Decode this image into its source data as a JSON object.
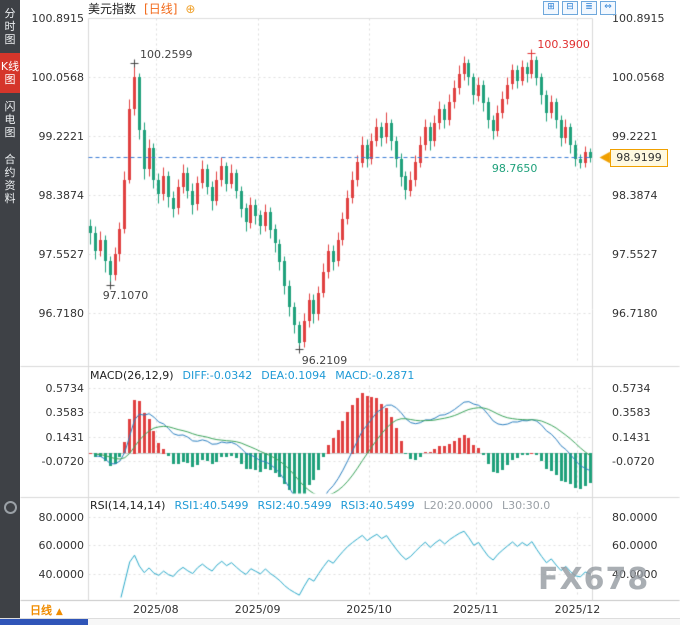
{
  "sidebar": {
    "items": [
      {
        "label": "分时图",
        "active": false
      },
      {
        "label": "K线图",
        "active": true
      },
      {
        "label": "闪电图",
        "active": false
      },
      {
        "label": "合约资料",
        "active": false
      }
    ]
  },
  "header": {
    "symbol": "美元指数",
    "period_tag": "[日线]",
    "add_icon_glyph": "⊕",
    "toolbar_icons": [
      {
        "name": "layout-quad-icon",
        "glyph": "⊞"
      },
      {
        "name": "layout-dual-icon",
        "glyph": "⊟"
      },
      {
        "name": "layout-rows-icon",
        "glyph": "≣"
      },
      {
        "name": "expand-icon",
        "glyph": "⇔"
      }
    ]
  },
  "main_chart": {
    "y_ticks": [
      "100.8915",
      "100.0568",
      "99.2221",
      "98.3874",
      "97.5527",
      "96.7180"
    ],
    "current_price_label": "98.9199"
  },
  "macd_panel": {
    "title": "MACD(26,12,9)",
    "diff": "DIFF:-0.0342",
    "dea": "DEA:0.1094",
    "macd": "MACD:-0.2871",
    "y_ticks": [
      "0.5734",
      "0.3583",
      "0.1431",
      "-0.0720"
    ]
  },
  "rsi_panel": {
    "title": "RSI(14,14,14)",
    "rsi1": "RSI1:40.5499",
    "rsi2": "RSI2:40.5499",
    "rsi3": "RSI3:40.5499",
    "l20": "L20:20.0000",
    "l30": "L30:30.0",
    "y_ticks": [
      "80.0000",
      "60.0000",
      "40.0000"
    ]
  },
  "bottom": {
    "period_label": "日线",
    "period_arrow": "▲",
    "x_labels": [
      "2025/08",
      "2025/09",
      "2025/10",
      "2025/11",
      "2025/12"
    ]
  },
  "watermark": "FX678",
  "colors": {
    "up": "#e04040",
    "down": "#1fa17b",
    "accent": "#f0a000",
    "dashed_line": "#3a7bd5",
    "diff_line": "#2b7fbf",
    "dea_line": "#3aa35a",
    "rsi_line": "#2aa9c9"
  },
  "chart_data": {
    "type": "candlestick",
    "title": "美元指数 日线",
    "y_ticks": [
      100.8915,
      100.0568,
      99.2221,
      98.3874,
      97.5527,
      96.718
    ],
    "x_labels": [
      "2025/08",
      "2025/09",
      "2025/10",
      "2025/11",
      "2025/12"
    ],
    "month_start_indices": [
      14,
      35,
      58,
      80,
      101
    ],
    "current_price": 98.9199,
    "marked_points": [
      {
        "text": "100.2599",
        "value": 100.2599,
        "index": 9,
        "color": "#444444",
        "placement": "high"
      },
      {
        "text": "100.3900",
        "value": 100.39,
        "index": 91,
        "color": "#e03030",
        "placement": "high"
      },
      {
        "text": "97.1070",
        "value": 97.107,
        "index": 4,
        "color": "#444444",
        "placement": "low-left"
      },
      {
        "text": "96.2109",
        "value": 96.2109,
        "index": 43,
        "color": "#444444",
        "placement": "low-right"
      },
      {
        "text": "98.7650",
        "value": 98.765,
        "index": 101,
        "color": "#1fa17b",
        "placement": "left"
      }
    ],
    "candles": [
      [
        97.95,
        98.05,
        97.7,
        97.85
      ],
      [
        97.85,
        97.95,
        97.48,
        97.6
      ],
      [
        97.6,
        97.88,
        97.52,
        97.75
      ],
      [
        97.75,
        97.82,
        97.3,
        97.45
      ],
      [
        97.45,
        97.52,
        97.107,
        97.25
      ],
      [
        97.25,
        97.65,
        97.18,
        97.55
      ],
      [
        97.55,
        98.0,
        97.45,
        97.9
      ],
      [
        97.9,
        98.72,
        97.85,
        98.6
      ],
      [
        98.6,
        99.75,
        98.55,
        99.6
      ],
      [
        99.6,
        100.2599,
        99.52,
        100.05
      ],
      [
        100.05,
        100.12,
        99.18,
        99.3
      ],
      [
        99.3,
        99.42,
        98.62,
        98.75
      ],
      [
        98.75,
        99.18,
        98.65,
        99.05
      ],
      [
        99.05,
        99.12,
        98.48,
        98.6
      ],
      [
        98.6,
        98.7,
        98.28,
        98.4
      ],
      [
        98.4,
        98.78,
        98.32,
        98.65
      ],
      [
        98.65,
        98.72,
        98.22,
        98.35
      ],
      [
        98.35,
        98.45,
        98.08,
        98.2
      ],
      [
        98.2,
        98.62,
        98.12,
        98.5
      ],
      [
        98.5,
        98.82,
        98.42,
        98.7
      ],
      [
        98.7,
        98.78,
        98.35,
        98.45
      ],
      [
        98.45,
        98.55,
        98.12,
        98.25
      ],
      [
        98.25,
        98.66,
        98.18,
        98.55
      ],
      [
        98.55,
        98.88,
        98.48,
        98.75
      ],
      [
        98.75,
        98.82,
        98.4,
        98.5
      ],
      [
        98.5,
        98.58,
        98.18,
        98.3
      ],
      [
        98.3,
        98.72,
        98.24,
        98.6
      ],
      [
        98.6,
        98.92,
        98.52,
        98.8
      ],
      [
        98.8,
        98.86,
        98.44,
        98.55
      ],
      [
        98.55,
        98.82,
        98.48,
        98.7
      ],
      [
        98.7,
        98.76,
        98.34,
        98.45
      ],
      [
        98.45,
        98.52,
        98.08,
        98.2
      ],
      [
        98.2,
        98.28,
        97.88,
        98.0
      ],
      [
        98.0,
        98.36,
        97.92,
        98.25
      ],
      [
        98.25,
        98.33,
        97.98,
        98.1
      ],
      [
        98.1,
        98.18,
        97.84,
        97.95
      ],
      [
        97.95,
        98.26,
        97.88,
        98.15
      ],
      [
        98.15,
        98.22,
        97.78,
        97.9
      ],
      [
        97.9,
        97.98,
        97.58,
        97.7
      ],
      [
        97.7,
        97.77,
        97.33,
        97.45
      ],
      [
        97.45,
        97.52,
        96.98,
        97.1
      ],
      [
        97.1,
        97.18,
        96.68,
        96.8
      ],
      [
        96.8,
        96.88,
        96.43,
        96.55
      ],
      [
        96.55,
        96.6,
        96.2109,
        96.3
      ],
      [
        96.3,
        96.72,
        96.24,
        96.6
      ],
      [
        96.6,
        97.0,
        96.52,
        96.9
      ],
      [
        96.9,
        96.98,
        96.58,
        96.7
      ],
      [
        96.7,
        97.1,
        96.62,
        97.0
      ],
      [
        97.0,
        97.42,
        96.94,
        97.3
      ],
      [
        97.3,
        97.7,
        97.22,
        97.6
      ],
      [
        97.6,
        97.68,
        97.33,
        97.45
      ],
      [
        97.45,
        97.86,
        97.38,
        97.75
      ],
      [
        97.75,
        98.15,
        97.68,
        98.05
      ],
      [
        98.05,
        98.46,
        97.98,
        98.35
      ],
      [
        98.35,
        98.72,
        98.28,
        98.6
      ],
      [
        98.6,
        98.96,
        98.52,
        98.85
      ],
      [
        98.85,
        99.22,
        98.78,
        99.1
      ],
      [
        99.1,
        99.18,
        98.78,
        98.9
      ],
      [
        98.9,
        99.26,
        98.82,
        99.15
      ],
      [
        99.15,
        99.48,
        99.08,
        99.35
      ],
      [
        99.35,
        99.42,
        99.08,
        99.2
      ],
      [
        99.2,
        99.56,
        99.12,
        99.4
      ],
      [
        99.4,
        99.46,
        99.02,
        99.15
      ],
      [
        99.15,
        99.22,
        98.78,
        98.9
      ],
      [
        98.9,
        98.98,
        98.52,
        98.65
      ],
      [
        98.65,
        98.72,
        98.33,
        98.45
      ],
      [
        98.45,
        98.72,
        98.38,
        98.6
      ],
      [
        98.6,
        98.96,
        98.52,
        98.85
      ],
      [
        98.85,
        99.22,
        98.78,
        99.1
      ],
      [
        99.1,
        99.46,
        99.02,
        99.35
      ],
      [
        99.35,
        99.42,
        99.03,
        99.15
      ],
      [
        99.15,
        99.52,
        99.08,
        99.4
      ],
      [
        99.4,
        99.72,
        99.32,
        99.6
      ],
      [
        99.6,
        99.67,
        99.33,
        99.45
      ],
      [
        99.45,
        99.82,
        99.38,
        99.7
      ],
      [
        99.7,
        100.02,
        99.62,
        99.9
      ],
      [
        99.9,
        100.22,
        99.82,
        100.1
      ],
      [
        100.1,
        100.36,
        100.02,
        100.25
      ],
      [
        100.25,
        100.31,
        99.94,
        100.05
      ],
      [
        100.05,
        100.12,
        99.68,
        99.8
      ],
      [
        99.8,
        100.06,
        99.72,
        99.95
      ],
      [
        99.95,
        100.02,
        99.58,
        99.7
      ],
      [
        99.7,
        99.77,
        99.33,
        99.45
      ],
      [
        99.45,
        99.52,
        99.18,
        99.3
      ],
      [
        99.3,
        99.66,
        99.22,
        99.55
      ],
      [
        99.55,
        99.86,
        99.48,
        99.75
      ],
      [
        99.75,
        100.06,
        99.68,
        99.95
      ],
      [
        99.95,
        100.24,
        99.88,
        100.15
      ],
      [
        100.15,
        100.22,
        99.9,
        100.0
      ],
      [
        100.0,
        100.3,
        99.94,
        100.2
      ],
      [
        100.2,
        100.27,
        99.98,
        100.1
      ],
      [
        100.1,
        100.39,
        100.04,
        100.3
      ],
      [
        100.3,
        100.36,
        99.94,
        100.05
      ],
      [
        100.05,
        100.11,
        99.68,
        99.8
      ],
      [
        99.8,
        99.87,
        99.43,
        99.55
      ],
      [
        99.55,
        99.8,
        99.48,
        99.7
      ],
      [
        99.7,
        99.76,
        99.33,
        99.45
      ],
      [
        99.45,
        99.52,
        99.08,
        99.2
      ],
      [
        99.2,
        99.46,
        99.12,
        99.35
      ],
      [
        99.35,
        99.41,
        98.98,
        99.1
      ],
      [
        99.1,
        99.16,
        98.8,
        98.9
      ],
      [
        98.9,
        98.97,
        98.765,
        98.85
      ],
      [
        98.85,
        99.08,
        98.79,
        99.0
      ],
      [
        99.0,
        99.05,
        98.86,
        98.9199
      ]
    ],
    "indicators": {
      "macd": {
        "params": [
          26,
          12,
          9
        ],
        "diff": -0.0342,
        "dea": 0.1094,
        "bar": -0.2871,
        "y_ticks": [
          0.5734,
          0.3583,
          0.1431,
          -0.072
        ]
      },
      "rsi": {
        "params": [
          14,
          14,
          14
        ],
        "rsi1": 40.5499,
        "rsi2": 40.5499,
        "rsi3": 40.5499,
        "l20": 20.0,
        "l30": 30.0,
        "y_ticks": [
          80,
          60,
          40
        ]
      }
    }
  }
}
